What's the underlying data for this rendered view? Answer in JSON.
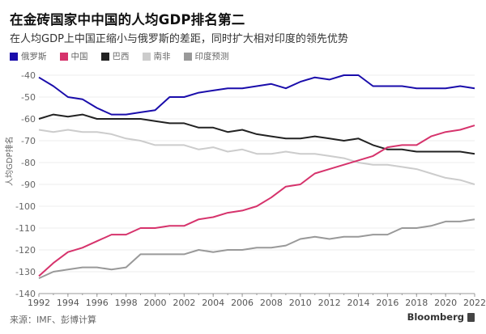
{
  "header": {
    "title": "在金砖国家中中国的人均GDP排名第二",
    "subtitle": "在人均GDP上中国正缩小与俄罗斯的差距，同时扩大相对印度的领先优势"
  },
  "footer": {
    "source": "来源：IMF、彭博计算",
    "brand": "Bloomberg"
  },
  "chart_data": {
    "type": "line",
    "title": "在金砖国家中中国的人均GDP排名第二",
    "subtitle": "在人均GDP上中国正缩小与俄罗斯的差距，同时扩大相对印度的领先优势",
    "xlabel": "",
    "ylabel": "人均GDP排名",
    "ylim": [
      -140,
      -40
    ],
    "yticks": [
      -40,
      -50,
      -60,
      -70,
      -80,
      -90,
      -100,
      -110,
      -120,
      -130,
      -140
    ],
    "xticks": [
      1992,
      1994,
      1996,
      1998,
      2000,
      2002,
      2004,
      2006,
      2008,
      2010,
      2012,
      2014,
      2016,
      2018,
      2020,
      2022
    ],
    "grid": true,
    "legend_position": "top-left",
    "x": [
      1992,
      1993,
      1994,
      1995,
      1996,
      1997,
      1998,
      1999,
      2000,
      2001,
      2002,
      2003,
      2004,
      2005,
      2006,
      2007,
      2008,
      2009,
      2010,
      2011,
      2012,
      2013,
      2014,
      2015,
      2016,
      2017,
      2018,
      2019,
      2020,
      2021,
      2022
    ],
    "series": [
      {
        "name": "俄罗斯",
        "color": "#1a0dab",
        "values": [
          -41,
          -45,
          -50,
          -51,
          -55,
          -58,
          -58,
          -57,
          -56,
          -50,
          -50,
          -48,
          -47,
          -46,
          -46,
          -45,
          -44,
          -46,
          -43,
          -41,
          -42,
          -40,
          -40,
          -45,
          -45,
          -45,
          -46,
          -46,
          -46,
          -45,
          -46
        ]
      },
      {
        "name": "中国",
        "color": "#d6336c",
        "values": [
          -132,
          -126,
          -121,
          -119,
          -116,
          -113,
          -113,
          -110,
          -110,
          -109,
          -109,
          -106,
          -105,
          -103,
          -102,
          -100,
          -96,
          -91,
          -90,
          -85,
          -83,
          -81,
          -79,
          -77,
          -73,
          -72,
          -72,
          -68,
          -66,
          -65,
          -63
        ]
      },
      {
        "name": "巴西",
        "color": "#222222",
        "values": [
          -60,
          -58,
          -59,
          -58,
          -60,
          -60,
          -60,
          -60,
          -61,
          -62,
          -62,
          -64,
          -64,
          -66,
          -65,
          -67,
          -68,
          -69,
          -69,
          -68,
          -69,
          -70,
          -69,
          -72,
          -74,
          -74,
          -75,
          -75,
          -75,
          -75,
          -76
        ]
      },
      {
        "name": "南非",
        "color": "#cccccc",
        "values": [
          -65,
          -66,
          -65,
          -66,
          -66,
          -67,
          -69,
          -70,
          -72,
          -72,
          -72,
          -74,
          -73,
          -75,
          -74,
          -76,
          -76,
          -75,
          -76,
          -76,
          -77,
          -78,
          -80,
          -81,
          -81,
          -82,
          -83,
          -85,
          -87,
          -88,
          -90
        ]
      },
      {
        "name": "印度预测",
        "color": "#999999",
        "values": [
          -133,
          -130,
          -129,
          -128,
          -128,
          -129,
          -128,
          -122,
          -122,
          -122,
          -122,
          -120,
          -121,
          -120,
          -120,
          -119,
          -119,
          -118,
          -115,
          -114,
          -115,
          -114,
          -114,
          -113,
          -113,
          -110,
          -110,
          -109,
          -107,
          -107,
          -106
        ]
      }
    ]
  }
}
